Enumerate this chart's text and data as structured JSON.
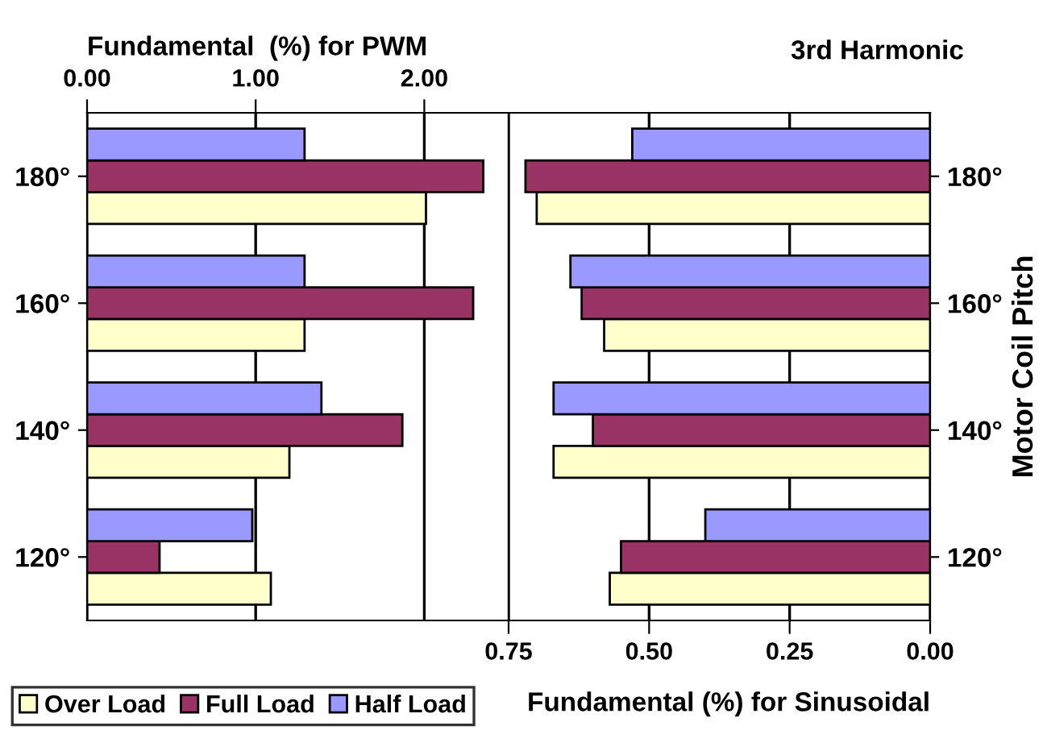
{
  "chart_data": [
    {
      "type": "bar",
      "orientation": "horizontal",
      "xlabel": "Fundamental  (%) for PWM",
      "categories": [
        "180°",
        "160°",
        "140°",
        "120°"
      ],
      "series": [
        {
          "name": "Over Load",
          "color": "#ffffcc",
          "values": [
            2.01,
            1.29,
            1.2,
            1.09
          ]
        },
        {
          "name": "Full Load",
          "color": "#993366",
          "values": [
            2.35,
            2.29,
            1.87,
            0.43
          ]
        },
        {
          "name": "Half Load",
          "color": "#9999ff",
          "values": [
            1.29,
            1.29,
            1.39,
            0.98
          ]
        }
      ],
      "xlim": [
        0,
        2.5
      ],
      "xticks": [
        {
          "value": 0,
          "label": "0.00"
        },
        {
          "value": 1,
          "label": "1.00"
        },
        {
          "value": 2,
          "label": "2.00"
        }
      ],
      "grid": "x",
      "legend": "bottom"
    },
    {
      "type": "bar",
      "orientation": "horizontal",
      "title": "3rd Harmonic",
      "xlabel": "Fundamental (%) for Sinusoidal",
      "ylabel": "Motor Coil Pitch",
      "categories": [
        "180°",
        "160°",
        "140°",
        "120°"
      ],
      "series": [
        {
          "color": "#ffffcc",
          "values": [
            0.7,
            0.58,
            0.67,
            0.57
          ]
        },
        {
          "color": "#993366",
          "values": [
            0.72,
            0.62,
            0.6,
            0.55
          ]
        },
        {
          "color": "#9999ff",
          "values": [
            0.53,
            0.64,
            0.67,
            0.4
          ]
        }
      ],
      "xlim": [
        0.75,
        0
      ],
      "xticks": [
        {
          "value": 0.75,
          "label": "0.75"
        },
        {
          "value": 0.5,
          "label": "0.50"
        },
        {
          "value": 0.25,
          "label": "0.25"
        },
        {
          "value": 0,
          "label": "0.00"
        }
      ],
      "grid": "x"
    }
  ]
}
